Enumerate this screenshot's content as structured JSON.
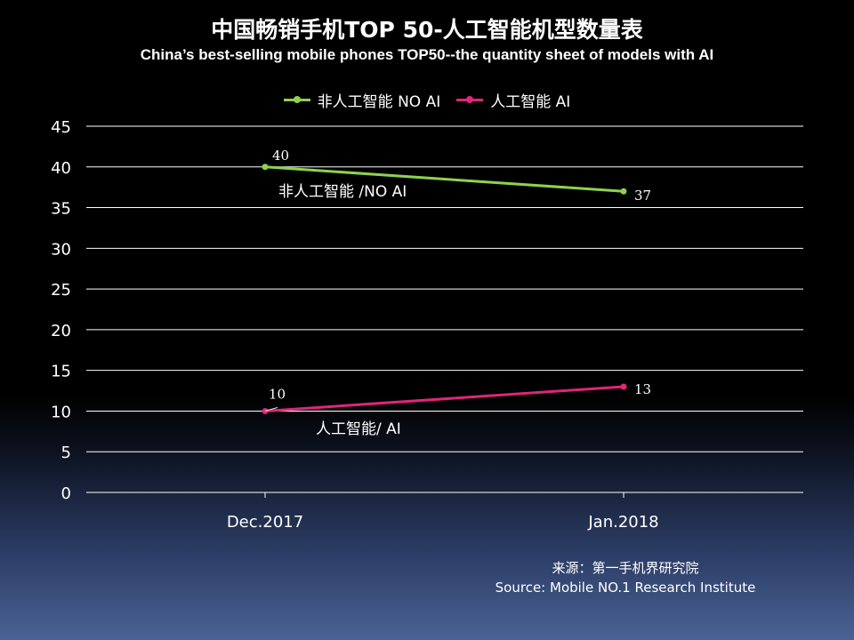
{
  "chart_data": {
    "type": "line",
    "title": "中国畅销手机TOP 50-人工智能机型数量表",
    "subtitle": "China’s best-selling mobile phones TOP50--the quantity sheet of models with AI",
    "categories": [
      "Dec.2017",
      "Jan.2018"
    ],
    "ylim": [
      0,
      45
    ],
    "yticks": [
      0,
      5,
      10,
      15,
      20,
      25,
      30,
      35,
      40,
      45
    ],
    "grid": true,
    "legend_position": "top",
    "series": [
      {
        "name": "非人工智能  NO AI",
        "values": [
          40,
          37
        ],
        "color": "#8fd14f",
        "data_labels": [
          "40",
          "37"
        ],
        "inline_label": "非人工智能 /NO AI"
      },
      {
        "name": "人工智能 AI",
        "values": [
          10,
          13
        ],
        "color": "#e0257a",
        "data_labels": [
          "10",
          "13"
        ],
        "inline_label": "人工智能/ AI"
      }
    ]
  },
  "source": {
    "line1": "来源：第一手机界研究院",
    "line2": "Source: Mobile NO.1 Research Institute"
  }
}
